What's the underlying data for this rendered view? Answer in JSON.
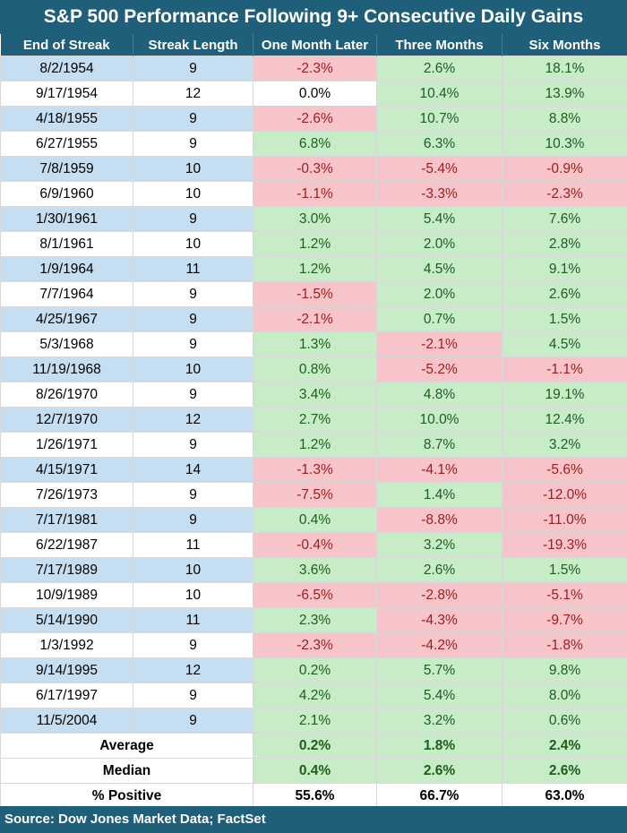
{
  "chart_data": {
    "type": "table",
    "title": "S&P 500 Performance Following 9+ Consecutive Daily Gains",
    "columns": [
      "End of Streak",
      "Streak Length",
      "One Month Later",
      "Three Months",
      "Six Months"
    ],
    "rows": [
      [
        "8/2/1954",
        "9",
        "-2.3%",
        "2.6%",
        "18.1%"
      ],
      [
        "9/17/1954",
        "12",
        "0.0%",
        "10.4%",
        "13.9%"
      ],
      [
        "4/18/1955",
        "9",
        "-2.6%",
        "10.7%",
        "8.8%"
      ],
      [
        "6/27/1955",
        "9",
        "6.8%",
        "6.3%",
        "10.3%"
      ],
      [
        "7/8/1959",
        "10",
        "-0.3%",
        "-5.4%",
        "-0.9%"
      ],
      [
        "6/9/1960",
        "10",
        "-1.1%",
        "-3.3%",
        "-2.3%"
      ],
      [
        "1/30/1961",
        "9",
        "3.0%",
        "5.4%",
        "7.6%"
      ],
      [
        "8/1/1961",
        "10",
        "1.2%",
        "2.0%",
        "2.8%"
      ],
      [
        "1/9/1964",
        "11",
        "1.2%",
        "4.5%",
        "9.1%"
      ],
      [
        "7/7/1964",
        "9",
        "-1.5%",
        "2.0%",
        "2.6%"
      ],
      [
        "4/25/1967",
        "9",
        "-2.1%",
        "0.7%",
        "1.5%"
      ],
      [
        "5/3/1968",
        "9",
        "1.3%",
        "-2.1%",
        "4.5%"
      ],
      [
        "11/19/1968",
        "10",
        "0.8%",
        "-5.2%",
        "-1.1%"
      ],
      [
        "8/26/1970",
        "9",
        "3.4%",
        "4.8%",
        "19.1%"
      ],
      [
        "12/7/1970",
        "12",
        "2.7%",
        "10.0%",
        "12.4%"
      ],
      [
        "1/26/1971",
        "9",
        "1.2%",
        "8.7%",
        "3.2%"
      ],
      [
        "4/15/1971",
        "14",
        "-1.3%",
        "-4.1%",
        "-5.6%"
      ],
      [
        "7/26/1973",
        "9",
        "-7.5%",
        "1.4%",
        "-12.0%"
      ],
      [
        "7/17/1981",
        "9",
        "0.4%",
        "-8.8%",
        "-11.0%"
      ],
      [
        "6/22/1987",
        "11",
        "-0.4%",
        "3.2%",
        "-19.3%"
      ],
      [
        "7/17/1989",
        "10",
        "3.6%",
        "2.6%",
        "1.5%"
      ],
      [
        "10/9/1989",
        "10",
        "-6.5%",
        "-2.8%",
        "-5.1%"
      ],
      [
        "5/14/1990",
        "11",
        "2.3%",
        "-4.3%",
        "-9.7%"
      ],
      [
        "1/3/1992",
        "9",
        "-2.3%",
        "-4.2%",
        "-1.8%"
      ],
      [
        "9/14/1995",
        "12",
        "0.2%",
        "5.7%",
        "9.8%"
      ],
      [
        "6/17/1997",
        "9",
        "4.2%",
        "5.4%",
        "8.0%"
      ],
      [
        "11/5/2004",
        "9",
        "2.1%",
        "3.2%",
        "0.6%"
      ]
    ],
    "summary": [
      {
        "label": "Average",
        "values": [
          "0.2%",
          "1.8%",
          "2.4%"
        ]
      },
      {
        "label": "Median",
        "values": [
          "0.4%",
          "2.6%",
          "2.6%"
        ]
      },
      {
        "label": "% Positive",
        "values": [
          "55.6%",
          "66.7%",
          "63.0%"
        ]
      }
    ],
    "source": "Source: Dow Jones Market Data; FactSet"
  },
  "colors": {
    "header_bg": "#1f5f7a",
    "row_blue": "#c6def1",
    "positive_fill": "#c8ecc8",
    "negative_fill": "#f6c4c9",
    "positive_text": "#1c5e1c",
    "negative_text": "#9c1c1c"
  }
}
